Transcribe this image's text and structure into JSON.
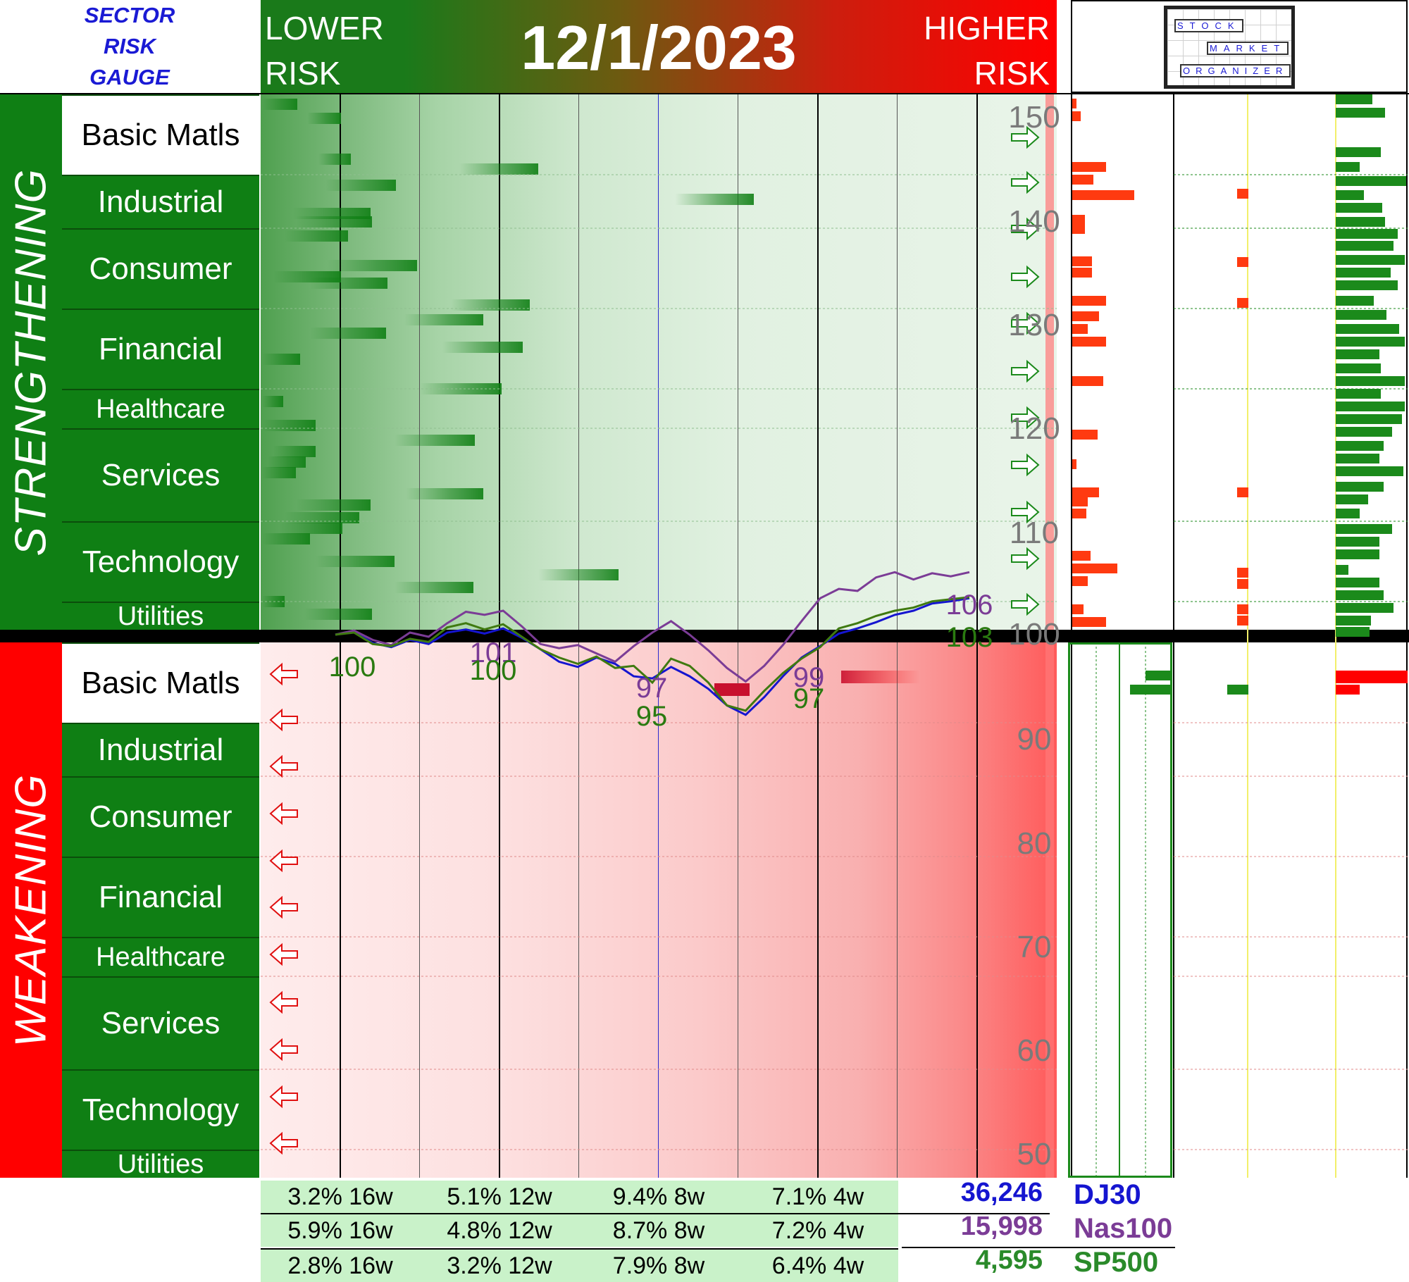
{
  "header": {
    "gauge_title": [
      "SECTOR",
      "RISK",
      "GAUGE"
    ],
    "lower_risk": [
      "LOWER",
      "RISK"
    ],
    "higher_risk": [
      "HIGHER",
      "RISK"
    ],
    "date": "12/1/2023",
    "logo_words": [
      "STOCK",
      "MARKET",
      "ORGANIZER"
    ]
  },
  "bands": {
    "strengthening": "STRENGTHENING",
    "weakening": "WEAKENING"
  },
  "sectors": [
    "Basic Matls",
    "Industrial",
    "Consumer",
    "Financial",
    "Healthcare",
    "Services",
    "Technology",
    "Utilities"
  ],
  "colors": {
    "green": "#0f7f14",
    "red": "#ff0000",
    "dj30": "#1515d0",
    "nas100": "#7b3c96",
    "sp500": "#3f7a10"
  },
  "chart_data": {
    "type": "line",
    "y_axis_ticks": [
      150,
      140,
      130,
      120,
      110,
      100,
      90,
      80,
      70,
      60,
      50
    ],
    "ylim": [
      50,
      150
    ],
    "series": [
      {
        "name": "DJ30",
        "values": [
          100,
          100.3,
          99.2,
          98.8,
          99.5,
          99.1,
          100.2,
          100.5,
          100.1,
          100.6,
          99.7,
          98.6,
          97.4,
          96.9,
          97.8,
          97.2,
          96.0,
          95.8,
          96.9,
          96.0,
          94.8,
          93.2,
          92.3,
          94.0,
          96.0,
          97.8,
          98.9,
          100.1,
          100.6,
          101.2,
          101.9,
          102.3,
          103.0,
          103.2,
          103.5
        ]
      },
      {
        "name": "Nas100",
        "values": [
          100,
          100.4,
          99.5,
          99.0,
          100.2,
          99.8,
          101.1,
          102.2,
          101.9,
          102.3,
          100.8,
          99.1,
          98.7,
          99.0,
          98.2,
          97.4,
          98.9,
          100.2,
          101.3,
          100.0,
          98.5,
          96.8,
          95.5,
          97.0,
          99.0,
          101.3,
          103.5,
          104.4,
          104.2,
          105.5,
          106.0,
          105.3,
          105.9,
          105.6,
          106.0
        ]
      },
      {
        "name": "SP500",
        "values": [
          100,
          100.2,
          99.1,
          98.9,
          99.6,
          99.3,
          100.7,
          101.1,
          100.5,
          101.0,
          99.8,
          98.6,
          97.8,
          97.2,
          97.9,
          96.8,
          97.0,
          95.4,
          97.7,
          97.0,
          95.4,
          93.2,
          92.7,
          94.6,
          96.3,
          97.7,
          98.8,
          100.6,
          101.1,
          101.8,
          102.3,
          102.6,
          103.2,
          103.4,
          103.6
        ]
      }
    ],
    "point_labels": [
      "100",
      "101",
      "100",
      "97",
      "95",
      "99",
      "97",
      "106",
      "103"
    ]
  },
  "stats": [
    [
      "3.2% 16w",
      "5.1% 12w",
      "9.4% 8w",
      "7.1% 4w"
    ],
    [
      "5.9% 16w",
      "4.8% 12w",
      "8.7% 8w",
      "7.2% 4w"
    ],
    [
      "2.8% 16w",
      "3.2% 12w",
      "7.9% 8w",
      "6.4% 4w"
    ]
  ],
  "indices": [
    {
      "value": "36,246",
      "name": "DJ30"
    },
    {
      "value": "15,998",
      "name": "Nas100"
    },
    {
      "value": "4,595",
      "name": "SP500"
    }
  ]
}
